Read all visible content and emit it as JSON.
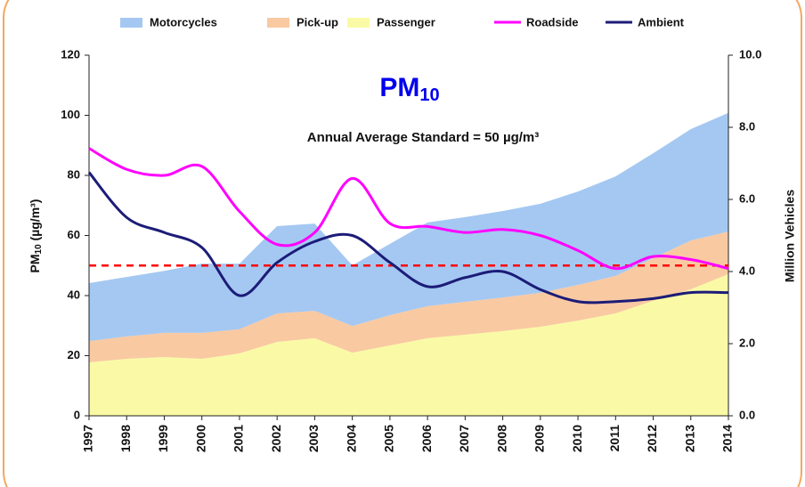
{
  "chart_data": {
    "type": "area-line",
    "title": {
      "main": "PM",
      "sub": "10"
    },
    "annotation": "Annual Average Standard = 50 µg/m³",
    "y_label": {
      "main": "PM",
      "sub": "10",
      "rest": " (µg/m³)"
    },
    "y2_label": "Million Vehicles",
    "categories": [
      "1997",
      "1998",
      "1999",
      "2000",
      "2001",
      "2002",
      "2003",
      "2004",
      "2005",
      "2006",
      "2007",
      "2008",
      "2009",
      "2010",
      "2011",
      "2012",
      "2013",
      "2014"
    ],
    "ylim": [
      0,
      120
    ],
    "yticks": [
      0,
      20,
      40,
      60,
      80,
      100,
      120
    ],
    "y2lim": [
      0,
      10
    ],
    "y2ticks": [
      {
        "value": 0,
        "label": "0.0"
      },
      {
        "value": 2,
        "label": "2.0"
      },
      {
        "value": 4,
        "label": "4.0"
      },
      {
        "value": 6,
        "label": "6.0"
      },
      {
        "value": 8,
        "label": "8.0"
      },
      {
        "value": 10,
        "label": "10.0"
      }
    ],
    "standard": {
      "value": 50,
      "color": "#ff0000"
    },
    "stacked": true,
    "series": [
      {
        "name": "Motorcycles",
        "type": "area",
        "axis": "y2",
        "color": "#a4c8f2",
        "values": [
          1.61,
          1.65,
          1.72,
          1.92,
          1.82,
          2.42,
          2.42,
          1.68,
          1.98,
          2.32,
          2.35,
          2.4,
          2.47,
          2.59,
          2.76,
          2.91,
          3.09,
          3.29
        ]
      },
      {
        "name": "Pick-up",
        "type": "area",
        "axis": "y2",
        "color": "#f9c9a2",
        "values": [
          0.59,
          0.62,
          0.67,
          0.72,
          0.67,
          0.79,
          0.76,
          0.74,
          0.84,
          0.89,
          0.91,
          0.93,
          0.94,
          0.99,
          1.04,
          1.18,
          1.35,
          1.18
        ]
      },
      {
        "name": "Passenger",
        "type": "area",
        "axis": "y2",
        "color": "#fafaa6",
        "values": [
          1.48,
          1.58,
          1.63,
          1.58,
          1.73,
          2.05,
          2.15,
          1.75,
          1.95,
          2.15,
          2.25,
          2.35,
          2.47,
          2.64,
          2.84,
          3.19,
          3.51,
          3.93
        ]
      },
      {
        "name": "Roadside",
        "type": "line",
        "color": "#ff00ff",
        "values": [
          89,
          82,
          80,
          83,
          68,
          57,
          61,
          79,
          64,
          63,
          61,
          62,
          60,
          55,
          49,
          53,
          52,
          49
        ]
      },
      {
        "name": "Ambient",
        "type": "line",
        "color": "#1c1c78",
        "values": [
          81,
          66,
          61,
          56,
          40,
          51,
          58,
          60,
          51,
          43,
          46,
          48,
          42,
          38,
          38,
          39,
          41,
          41
        ]
      }
    ]
  }
}
